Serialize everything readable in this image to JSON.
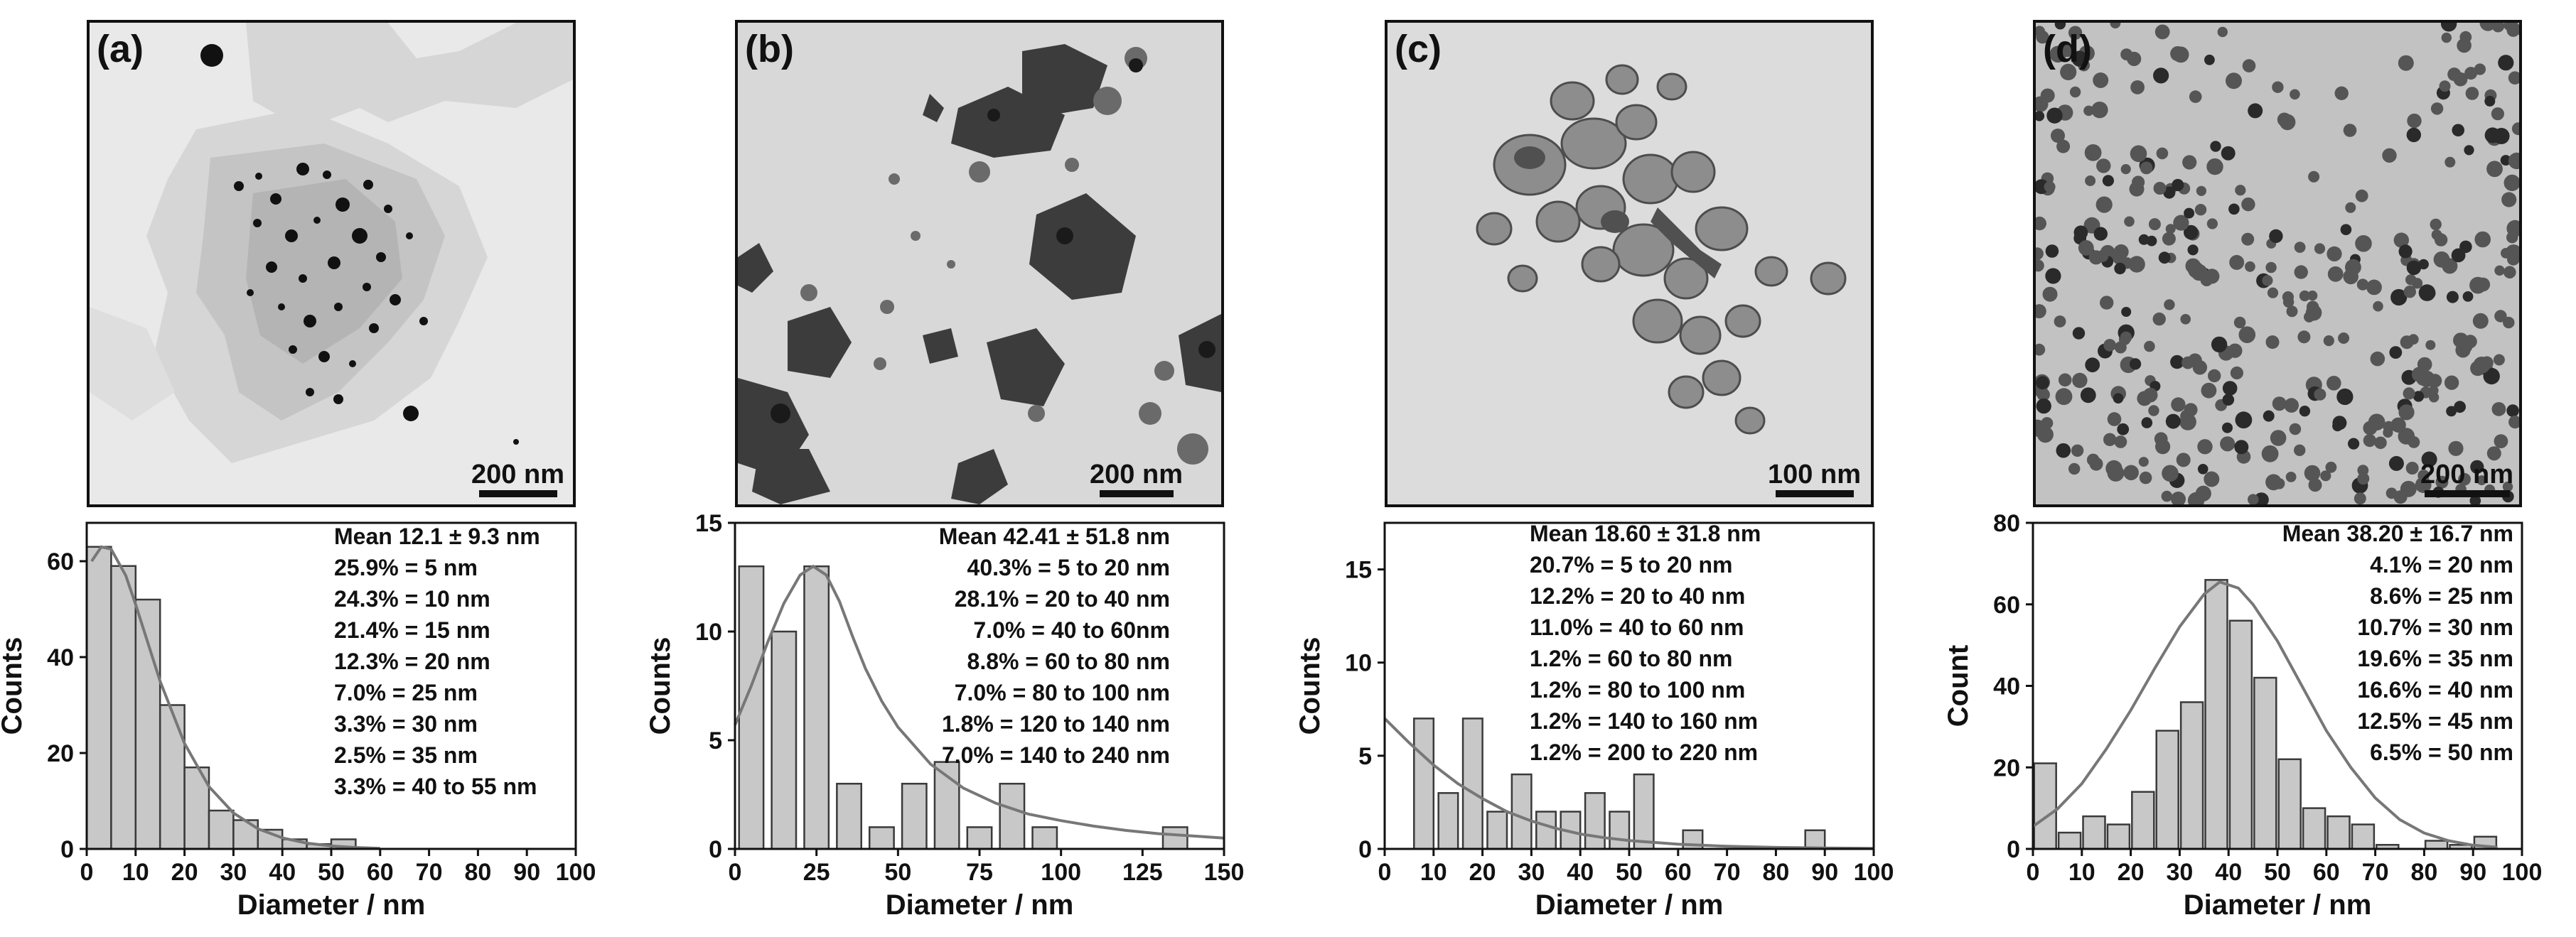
{
  "panels": [
    {
      "label": "(a)",
      "scale": "200 nm",
      "chart_data": {
        "type": "bar",
        "xlabel": "Diameter / nm",
        "ylabel": "Counts",
        "xlim": [
          0,
          100
        ],
        "ylim": [
          0,
          68
        ],
        "xticks": [
          0,
          10,
          20,
          30,
          40,
          50,
          60,
          70,
          80,
          90,
          100
        ],
        "yticks": [
          0,
          20,
          40,
          60
        ],
        "bin_width": 5,
        "bars": [
          [
            2.5,
            63
          ],
          [
            7.5,
            59
          ],
          [
            12.5,
            52
          ],
          [
            17.5,
            30
          ],
          [
            22.5,
            17
          ],
          [
            27.5,
            8
          ],
          [
            32.5,
            6
          ],
          [
            37.5,
            4
          ],
          [
            42.5,
            2
          ],
          [
            47.5,
            1
          ],
          [
            52.5,
            2
          ]
        ],
        "fit": [
          [
            1,
            60
          ],
          [
            3,
            63
          ],
          [
            5,
            62.5
          ],
          [
            8,
            57
          ],
          [
            10,
            51
          ],
          [
            15,
            35
          ],
          [
            20,
            22
          ],
          [
            25,
            13
          ],
          [
            30,
            7.5
          ],
          [
            35,
            4.2
          ],
          [
            40,
            2.3
          ],
          [
            45,
            1.2
          ],
          [
            50,
            0.6
          ],
          [
            55,
            0.3
          ],
          [
            60,
            0.1
          ]
        ],
        "annotations": [
          "Mean 12.1 ± 9.3 nm",
          "25.9% = 5 nm",
          "24.3% = 10 nm",
          "21.4% = 15 nm",
          "12.3% = 20 nm",
          "7.0% = 25 nm",
          "3.3% = 30 nm",
          "2.5% = 35 nm",
          "3.3% = 40 to 55 nm"
        ]
      }
    },
    {
      "label": "(b)",
      "scale": "200 nm",
      "chart_data": {
        "type": "bar",
        "xlabel": "Diameter / nm",
        "ylabel": "Counts",
        "xlim": [
          0,
          150
        ],
        "ylim": [
          0,
          15
        ],
        "xticks": [
          0,
          25,
          50,
          75,
          100,
          125,
          150
        ],
        "yticks": [
          0,
          5,
          10,
          15
        ],
        "bin_width": 7.5,
        "bars": [
          [
            5,
            13
          ],
          [
            15,
            10
          ],
          [
            25,
            13
          ],
          [
            35,
            3
          ],
          [
            45,
            1
          ],
          [
            55,
            3
          ],
          [
            65,
            4
          ],
          [
            75,
            1
          ],
          [
            85,
            3
          ],
          [
            95,
            1
          ],
          [
            135,
            1
          ]
        ],
        "fit": [
          [
            0,
            5.7
          ],
          [
            5,
            7.5
          ],
          [
            10,
            9.5
          ],
          [
            15,
            11.3
          ],
          [
            20,
            12.6
          ],
          [
            24,
            13.0
          ],
          [
            28,
            12.6
          ],
          [
            32,
            11.4
          ],
          [
            36,
            9.8
          ],
          [
            40,
            8.3
          ],
          [
            45,
            6.8
          ],
          [
            50,
            5.6
          ],
          [
            60,
            3.9
          ],
          [
            70,
            2.8
          ],
          [
            80,
            2.1
          ],
          [
            90,
            1.6
          ],
          [
            100,
            1.3
          ],
          [
            110,
            1.05
          ],
          [
            120,
            0.85
          ],
          [
            130,
            0.7
          ],
          [
            140,
            0.6
          ],
          [
            150,
            0.5
          ]
        ],
        "annotations": [
          "Mean 42.41 ± 51.8 nm",
          "40.3% = 5 to 20 nm",
          "28.1% = 20 to 40 nm",
          "7.0% = 40 to 60nm",
          "8.8% = 60 to 80 nm",
          "7.0% = 80 to 100 nm",
          "1.8% = 120 to 140 nm",
          "7.0% = 140 to 240 nm"
        ]
      }
    },
    {
      "label": "(c)",
      "scale": "100 nm",
      "chart_data": {
        "type": "bar",
        "xlabel": "Diameter / nm",
        "ylabel": "Counts",
        "xlim": [
          0,
          100
        ],
        "ylim": [
          0,
          17.5
        ],
        "xticks": [
          0,
          10,
          20,
          30,
          40,
          50,
          60,
          70,
          80,
          90,
          100
        ],
        "yticks": [
          0,
          5,
          10,
          15
        ],
        "bin_width": 4,
        "bars": [
          [
            8,
            7
          ],
          [
            13,
            3
          ],
          [
            18,
            7
          ],
          [
            23,
            2
          ],
          [
            28,
            4
          ],
          [
            33,
            2
          ],
          [
            38,
            2
          ],
          [
            43,
            3
          ],
          [
            48,
            2
          ],
          [
            53,
            4
          ],
          [
            63,
            1
          ],
          [
            88,
            1
          ]
        ],
        "fit": [
          [
            0,
            7
          ],
          [
            5,
            5.7
          ],
          [
            10,
            4.5
          ],
          [
            15,
            3.5
          ],
          [
            20,
            2.7
          ],
          [
            25,
            2.0
          ],
          [
            30,
            1.5
          ],
          [
            35,
            1.1
          ],
          [
            40,
            0.8
          ],
          [
            45,
            0.6
          ],
          [
            50,
            0.45
          ],
          [
            60,
            0.25
          ],
          [
            70,
            0.14
          ],
          [
            80,
            0.08
          ],
          [
            90,
            0.05
          ],
          [
            100,
            0.03
          ]
        ],
        "annotations": [
          "Mean 18.60 ± 31.8 nm",
          "20.7% = 5 to 20 nm",
          "12.2% = 20 to 40 nm",
          "11.0% = 40 to 60 nm",
          "1.2% = 60 to 80 nm",
          "1.2% = 80 to 100 nm",
          "1.2% = 140 to 160 nm",
          "1.2% = 200 to 220 nm"
        ]
      }
    },
    {
      "label": "(d)",
      "scale": "200 nm",
      "chart_data": {
        "type": "bar",
        "xlabel": "Diameter / nm",
        "ylabel": "Count",
        "xlim": [
          0,
          100
        ],
        "ylim": [
          0,
          80
        ],
        "xticks": [
          0,
          10,
          20,
          30,
          40,
          50,
          60,
          70,
          80,
          90,
          100
        ],
        "yticks": [
          0,
          20,
          40,
          60,
          80
        ],
        "bin_width": 4.5,
        "bars": [
          [
            2.5,
            21
          ],
          [
            7.5,
            4
          ],
          [
            12.5,
            8
          ],
          [
            17.5,
            6
          ],
          [
            22.5,
            14
          ],
          [
            27.5,
            29
          ],
          [
            32.5,
            36
          ],
          [
            37.5,
            66
          ],
          [
            42.5,
            56
          ],
          [
            47.5,
            42
          ],
          [
            52.5,
            22
          ],
          [
            57.5,
            10
          ],
          [
            62.5,
            8
          ],
          [
            67.5,
            6
          ],
          [
            72.5,
            1
          ],
          [
            77.5,
            0
          ],
          [
            82.5,
            2
          ],
          [
            87.5,
            1
          ],
          [
            92.5,
            3
          ]
        ],
        "fit": [
          [
            0,
            5.5
          ],
          [
            5,
            9.8
          ],
          [
            10,
            16
          ],
          [
            15,
            24.5
          ],
          [
            20,
            34
          ],
          [
            25,
            44.5
          ],
          [
            30,
            54.5
          ],
          [
            35,
            62.5
          ],
          [
            38.2,
            65.5
          ],
          [
            42,
            64
          ],
          [
            45,
            60
          ],
          [
            50,
            51
          ],
          [
            55,
            40
          ],
          [
            60,
            29
          ],
          [
            65,
            20
          ],
          [
            70,
            12.5
          ],
          [
            75,
            7.2
          ],
          [
            80,
            3.9
          ],
          [
            85,
            2
          ],
          [
            90,
            0.9
          ],
          [
            95,
            0.4
          ]
        ],
        "annotations": [
          "Mean 38.20 ± 16.7 nm",
          "4.1% = 20 nm",
          "8.6% = 25 nm",
          "10.7% = 30 nm",
          "19.6% = 35 nm",
          "16.6% = 40 nm",
          "12.5% = 45 nm",
          "6.5% = 50 nm"
        ]
      }
    }
  ]
}
